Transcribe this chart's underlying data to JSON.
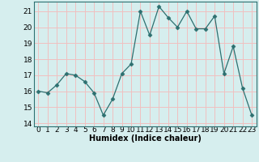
{
  "x": [
    0,
    1,
    2,
    3,
    4,
    5,
    6,
    7,
    8,
    9,
    10,
    11,
    12,
    13,
    14,
    15,
    16,
    17,
    18,
    19,
    20,
    21,
    22,
    23
  ],
  "y": [
    16.0,
    15.9,
    16.4,
    17.1,
    17.0,
    16.6,
    15.9,
    14.5,
    15.5,
    17.1,
    17.7,
    21.0,
    19.5,
    21.3,
    20.6,
    20.0,
    21.0,
    19.9,
    19.9,
    20.7,
    17.1,
    18.8,
    16.2,
    14.5
  ],
  "line_color": "#2d7070",
  "marker": "D",
  "marker_size": 2.5,
  "bg_color": "#d6eeee",
  "grid_color": "#f0c0c0",
  "xlabel": "Humidex (Indice chaleur)",
  "xlim": [
    -0.5,
    23.5
  ],
  "ylim": [
    13.8,
    21.6
  ],
  "yticks": [
    14,
    15,
    16,
    17,
    18,
    19,
    20,
    21
  ],
  "xticks": [
    0,
    1,
    2,
    3,
    4,
    5,
    6,
    7,
    8,
    9,
    10,
    11,
    12,
    13,
    14,
    15,
    16,
    17,
    18,
    19,
    20,
    21,
    22,
    23
  ],
  "xlabel_fontsize": 7,
  "tick_fontsize": 6.5
}
